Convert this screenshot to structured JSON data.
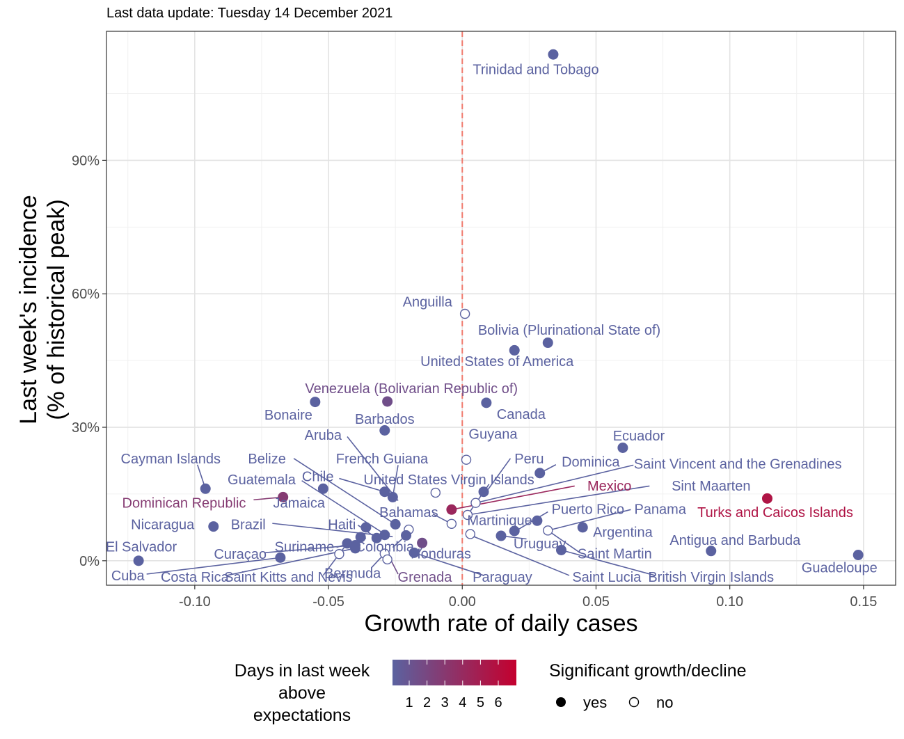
{
  "chart_data": {
    "type": "scatter",
    "subtitle": "Last data update: Tuesday 14 December 2021",
    "xlabel": "Growth rate of daily cases",
    "ylabel_line1": "Last week's incidence",
    "ylabel_line2": "(% of historical peak)",
    "xlim": [
      -0.133,
      0.162
    ],
    "ylim": [
      -5.5,
      119
    ],
    "x_ticks": [
      {
        "value": -0.1,
        "label": "-0.10"
      },
      {
        "value": -0.05,
        "label": "-0.05"
      },
      {
        "value": 0.0,
        "label": "0.00"
      },
      {
        "value": 0.05,
        "label": "0.05"
      },
      {
        "value": 0.1,
        "label": "0.10"
      },
      {
        "value": 0.15,
        "label": "0.15"
      }
    ],
    "y_ticks": [
      {
        "value": 0,
        "label": "0%"
      },
      {
        "value": 30,
        "label": "30%"
      },
      {
        "value": 60,
        "label": "60%"
      },
      {
        "value": 90,
        "label": "90%"
      }
    ],
    "reference_line_x": 0,
    "grid": true,
    "colors": {
      "low": "#5b62a0",
      "high": "#c4002e",
      "reference_line": "#f07a6e"
    },
    "legend_color": {
      "title_lines": [
        "Days in last week",
        "above",
        "expectations"
      ],
      "labels": [
        "1",
        "2",
        "3",
        "4",
        "5",
        "6"
      ],
      "range": [
        1,
        6
      ]
    },
    "legend_shape": {
      "title": "Significant growth/decline",
      "items": [
        {
          "label": "yes",
          "filled": true
        },
        {
          "label": "no",
          "filled": false
        }
      ]
    },
    "points": [
      {
        "country": "Trinidad and Tobago",
        "x": 0.034,
        "y": 113.8,
        "days": 1,
        "significant": true
      },
      {
        "country": "Anguilla",
        "x": 0.001,
        "y": 55.5,
        "days": 1,
        "significant": false
      },
      {
        "country": "Bolivia (Plurinational State of)",
        "x": 0.032,
        "y": 49.0,
        "days": 1,
        "significant": true
      },
      {
        "country": "United States of America",
        "x": 0.0195,
        "y": 47.3,
        "days": 1,
        "significant": true
      },
      {
        "country": "Venezuela (Bolivarian Republic of)",
        "x": -0.028,
        "y": 35.8,
        "days": 2,
        "significant": true
      },
      {
        "country": "Bonaire",
        "x": -0.055,
        "y": 35.7,
        "days": 1,
        "significant": true
      },
      {
        "country": "Canada",
        "x": 0.009,
        "y": 35.5,
        "days": 1,
        "significant": true
      },
      {
        "country": "Barbados",
        "x": -0.029,
        "y": 29.3,
        "days": 1,
        "significant": true
      },
      {
        "country": "Ecuador",
        "x": 0.06,
        "y": 25.4,
        "days": 1,
        "significant": true
      },
      {
        "country": "Guyana",
        "x": 0.0015,
        "y": 22.7,
        "days": 1,
        "significant": false
      },
      {
        "country": "Peru",
        "x": 0.029,
        "y": 19.7,
        "days": 1,
        "significant": true
      },
      {
        "country": "Cayman Islands",
        "x": -0.096,
        "y": 16.2,
        "days": 1,
        "significant": true
      },
      {
        "country": "Guatemala",
        "x": -0.052,
        "y": 16.2,
        "days": 1,
        "significant": true
      },
      {
        "country": "Chile",
        "x": -0.029,
        "y": 15.5,
        "days": 1,
        "significant": true
      },
      {
        "country": "French Guiana",
        "x": -0.026,
        "y": 14.3,
        "days": 1,
        "significant": true
      },
      {
        "country": "United States Virgin Islands",
        "x": 0.008,
        "y": 15.5,
        "days": 1,
        "significant": true
      },
      {
        "country": "Dominica",
        "x": -0.01,
        "y": 15.3,
        "days": 1,
        "significant": false
      },
      {
        "country": "Dominican Republic",
        "x": -0.067,
        "y": 14.3,
        "days": 3,
        "significant": true
      },
      {
        "country": "Turks and Caicos Islands",
        "x": 0.114,
        "y": 14.0,
        "days": 5,
        "significant": true
      },
      {
        "country": "Saint Vincent and the Grenadines",
        "x": 0.005,
        "y": 13.0,
        "days": 1,
        "significant": false
      },
      {
        "country": "Mexico",
        "x": -0.004,
        "y": 11.5,
        "days": 4,
        "significant": true
      },
      {
        "country": "Sint Maarten",
        "x": 0.002,
        "y": 10.3,
        "days": 1,
        "significant": false
      },
      {
        "country": "Puerto Rico",
        "x": 0.028,
        "y": 9.0,
        "days": 1,
        "significant": true
      },
      {
        "country": "Bahamas",
        "x": -0.004,
        "y": 8.3,
        "days": 1,
        "significant": false
      },
      {
        "country": "Belize",
        "x": -0.025,
        "y": 8.2,
        "days": 1,
        "significant": true
      },
      {
        "country": "Nicaragua",
        "x": -0.093,
        "y": 7.7,
        "days": 1,
        "significant": true
      },
      {
        "country": "Argentina",
        "x": 0.045,
        "y": 7.5,
        "days": 1,
        "significant": true
      },
      {
        "country": "Haiti",
        "x": -0.036,
        "y": 7.5,
        "days": 1,
        "significant": true
      },
      {
        "country": "Aruba",
        "x": -0.02,
        "y": 7.0,
        "days": 1,
        "significant": false
      },
      {
        "country": "Panama",
        "x": 0.032,
        "y": 6.8,
        "days": 1,
        "significant": false
      },
      {
        "country": "Martinique",
        "x": 0.0195,
        "y": 6.7,
        "days": 1,
        "significant": true
      },
      {
        "country": "Honduras",
        "x": 0.003,
        "y": 6.0,
        "days": 1,
        "significant": false
      },
      {
        "country": "Jamaica",
        "x": -0.029,
        "y": 5.8,
        "days": 1,
        "significant": true
      },
      {
        "country": "Uruguay",
        "x": 0.0145,
        "y": 5.6,
        "days": 1,
        "significant": true
      },
      {
        "country": "Brazil",
        "x": -0.038,
        "y": 5.3,
        "days": 1,
        "significant": true
      },
      {
        "country": "Colombia",
        "x": -0.021,
        "y": 5.7,
        "days": 1,
        "significant": true
      },
      {
        "country": "Suriname",
        "x": -0.032,
        "y": 5.1,
        "days": 1,
        "significant": true
      },
      {
        "country": "Saint Kitts and Nevis",
        "x": -0.043,
        "y": 3.9,
        "days": 1,
        "significant": true
      },
      {
        "country": "Costa Rica",
        "x": -0.04,
        "y": 2.8,
        "days": 1,
        "significant": true
      },
      {
        "country": "Grenada",
        "x": -0.015,
        "y": 4.0,
        "days": 2,
        "significant": true
      },
      {
        "country": "Saint Lucia",
        "x": 0.037,
        "y": 2.4,
        "days": 1,
        "significant": true
      },
      {
        "country": "Antigua and Barbuda",
        "x": 0.093,
        "y": 2.2,
        "days": 1,
        "significant": true
      },
      {
        "country": "Paraguay",
        "x": -0.018,
        "y": 1.8,
        "days": 1,
        "significant": true
      },
      {
        "country": "Bermuda",
        "x": -0.029,
        "y": 1.6,
        "days": 1,
        "significant": false
      },
      {
        "country": "Curaçao",
        "x": -0.046,
        "y": 1.5,
        "days": 1,
        "significant": false
      },
      {
        "country": "Guadeloupe",
        "x": 0.148,
        "y": 1.3,
        "days": 1,
        "significant": true
      },
      {
        "country": "El Salvador",
        "x": -0.068,
        "y": 0.7,
        "days": 1,
        "significant": true
      },
      {
        "country": "British Virgin Islands",
        "x": -0.028,
        "y": 0.3,
        "days": 1,
        "significant": false
      },
      {
        "country": "Cuba",
        "x": -0.121,
        "y": 0.0,
        "days": 1,
        "significant": true
      },
      {
        "country": "Saint Martin",
        "x": -0.04,
        "y": 3.5,
        "days": 1,
        "significant": true
      }
    ],
    "labels": [
      {
        "text": "Trinidad and Tobago",
        "point": "Trinidad and Tobago",
        "lx": 0.0275,
        "ly": 110.5
      },
      {
        "text": "Anguilla",
        "point": "Anguilla",
        "lx": -0.013,
        "ly": 58.2
      },
      {
        "text": "Bolivia (Plurinational State of)",
        "point": "Bolivia (Plurinational State of)",
        "lx": 0.04,
        "ly": 51.9
      },
      {
        "text": "United States of America",
        "point": "United States of America",
        "lx": 0.013,
        "ly": 44.9
      },
      {
        "text": "Venezuela (Bolivarian Republic of)",
        "point": "Venezuela (Bolivarian Republic of)",
        "lx": -0.019,
        "ly": 38.8
      },
      {
        "text": "Bonaire",
        "point": "Bonaire",
        "lx": -0.065,
        "ly": 32.8
      },
      {
        "text": "Canada",
        "point": "Canada",
        "lx": 0.022,
        "ly": 33.0
      },
      {
        "text": "Barbados",
        "point": "Barbados",
        "lx": -0.029,
        "ly": 31.9
      },
      {
        "text": "Ecuador",
        "point": "Ecuador",
        "lx": 0.066,
        "ly": 28.1
      },
      {
        "text": "Guyana",
        "point": "Guyana",
        "lx": 0.0115,
        "ly": 28.5
      },
      {
        "text": "Aruba",
        "point": "Aruba",
        "lx": -0.052,
        "ly": 28.3,
        "line_to": [
          -0.043,
          27.9,
          -0.024,
          13.5
        ]
      },
      {
        "text": "Cayman Islands",
        "point": "Cayman Islands",
        "lx": -0.109,
        "ly": 23.0,
        "line_to": [
          -0.099,
          21.6,
          -0.096,
          16.2
        ]
      },
      {
        "text": "Belize",
        "point": "Belize",
        "lx": -0.073,
        "ly": 23.0,
        "line_to": [
          -0.063,
          23.0,
          -0.025,
          8.2
        ]
      },
      {
        "text": "French Guiana",
        "point": "French Guiana",
        "lx": -0.03,
        "ly": 23.0,
        "line_to": [
          -0.024,
          21.5,
          -0.026,
          14.3
        ]
      },
      {
        "text": "Peru",
        "point": "Peru",
        "lx": 0.025,
        "ly": 23.0,
        "line_to": [
          0.018,
          23.0,
          0.009,
          15.5
        ]
      },
      {
        "text": "Dominica",
        "point": "Dominica",
        "lx": 0.048,
        "ly": 22.3,
        "line_to": [
          0.035,
          21.6,
          0.029,
          19.7
        ]
      },
      {
        "text": "Saint Vincent and the Grenadines",
        "point": "Saint Vincent and the Grenadines",
        "lx": 0.103,
        "ly": 21.8,
        "line_to": [
          0.064,
          21.5,
          0.005,
          13.0
        ]
      },
      {
        "text": "Guatemala",
        "point": "Guatemala",
        "lx": -0.075,
        "ly": 18.3,
        "line_to": [
          -0.06,
          18.0,
          -0.028,
          5.6
        ]
      },
      {
        "text": "Chile",
        "point": "Chile",
        "lx": -0.054,
        "ly": 19.0,
        "line_to": [
          -0.046,
          18.5,
          -0.029,
          15.5
        ]
      },
      {
        "text": "United States Virgin Islands",
        "point": "United States Virgin Islands",
        "lx": -0.005,
        "ly": 18.3,
        "line_to": [
          0.01,
          17.2,
          0.002,
          10.3
        ]
      },
      {
        "text": "Mexico",
        "point": "Mexico",
        "lx": 0.055,
        "ly": 16.9,
        "line_to": [
          0.042,
          16.8,
          -0.004,
          11.5
        ]
      },
      {
        "text": "Sint Maarten",
        "point": "Sint Maarten",
        "lx": 0.093,
        "ly": 16.9,
        "line_to": [
          0.07,
          16.8,
          0.002,
          10.3
        ]
      },
      {
        "text": "Dominican Republic",
        "point": "Dominican Republic",
        "lx": -0.104,
        "ly": 13.0,
        "line_to": [
          -0.078,
          13.7,
          -0.067,
          14.3
        ]
      },
      {
        "text": "Jamaica",
        "point": "Jamaica",
        "lx": -0.061,
        "ly": 13.0
      },
      {
        "text": "Turks and Caicos Islands",
        "point": "Turks and Caicos Islands",
        "lx": 0.117,
        "ly": 10.9
      },
      {
        "text": "Bahamas",
        "point": "Bahamas",
        "lx": -0.02,
        "ly": 10.9,
        "line_to": [
          -0.011,
          10.5,
          -0.004,
          8.3
        ]
      },
      {
        "text": "Puerto Rico",
        "point": "Puerto Rico",
        "lx": 0.047,
        "ly": 11.6,
        "line_to": [
          0.032,
          11.0,
          0.02,
          6.7
        ]
      },
      {
        "text": "Panama",
        "point": "Panama",
        "lx": 0.074,
        "ly": 11.6,
        "line_to": [
          0.063,
          11.5,
          0.032,
          6.8
        ]
      },
      {
        "text": "Martinique",
        "point": "Martinique",
        "lx": 0.014,
        "ly": 9.1,
        "line_to": [
          0.026,
          8.9,
          0.028,
          9.0
        ]
      },
      {
        "text": "Nicaragua",
        "point": "Nicaragua",
        "lx": -0.112,
        "ly": 8.2
      },
      {
        "text": "Brazil",
        "point": "Brazil",
        "lx": -0.08,
        "ly": 8.2,
        "line_to": [
          -0.071,
          8.4,
          -0.026,
          5.4
        ]
      },
      {
        "text": "Haiti",
        "point": "Haiti",
        "lx": -0.045,
        "ly": 8.2,
        "line_to": [
          -0.039,
          8.0,
          -0.032,
          5.1
        ]
      },
      {
        "text": "Argentina",
        "point": "Argentina",
        "lx": 0.06,
        "ly": 6.5
      },
      {
        "text": "El Salvador",
        "point": "El Salvador",
        "lx": -0.12,
        "ly": 3.2
      },
      {
        "text": "Suriname",
        "point": "Suriname",
        "lx": -0.059,
        "ly": 3.2,
        "line_to": [
          -0.047,
          3.0,
          -0.036,
          5.1
        ]
      },
      {
        "text": "Colombia",
        "point": "Colombia",
        "lx": -0.029,
        "ly": 3.2,
        "line_to": [
          -0.026,
          3.0,
          -0.021,
          5.7
        ]
      },
      {
        "text": "Uruguay",
        "point": "Uruguay",
        "lx": 0.029,
        "ly": 3.9,
        "line_to": [
          0.024,
          4.9,
          0.0145,
          5.6
        ]
      },
      {
        "text": "Antigua and Barbuda",
        "point": "Antigua and Barbuda",
        "lx": 0.102,
        "ly": 4.7
      },
      {
        "text": "Honduras",
        "point": "Honduras",
        "lx": -0.008,
        "ly": 1.6,
        "line_to": [
          -0.016,
          2.0,
          -0.014,
          4.0
        ]
      },
      {
        "text": "Saint Martin",
        "point": "Saint Martin",
        "lx": 0.057,
        "ly": 1.6,
        "line_to": [
          0.044,
          1.8,
          0.032,
          6.8
        ]
      },
      {
        "text": "Curaçao",
        "point": "Curaçao",
        "lx": -0.083,
        "ly": 1.5,
        "line_to": [
          -0.074,
          1.8,
          -0.04,
          3.5
        ]
      },
      {
        "text": "Guadeloupe",
        "point": "Guadeloupe",
        "lx": 0.141,
        "ly": -1.5
      },
      {
        "text": "Bermuda",
        "point": "Bermuda",
        "lx": -0.041,
        "ly": -2.8,
        "line_to": [
          -0.034,
          -1.6,
          -0.029,
          1.6
        ]
      },
      {
        "text": "Cuba",
        "point": "Cuba",
        "lx": -0.125,
        "ly": -3.3,
        "line_to": [
          -0.118,
          -3.0,
          -0.068,
          0.7
        ]
      },
      {
        "text": "Costa Rica",
        "point": "Costa Rica",
        "lx": -0.1,
        "ly": -3.6,
        "line_to": [
          -0.088,
          -3.3,
          -0.04,
          2.8
        ]
      },
      {
        "text": "Saint Kitts and Nevis",
        "point": "Saint Kitts and Nevis",
        "lx": -0.065,
        "ly": -3.6,
        "line_to": [
          -0.052,
          -3.3,
          -0.043,
          3.9
        ]
      },
      {
        "text": "Grenada",
        "point": "Grenada",
        "lx": -0.014,
        "ly": -3.6,
        "line_to": [
          -0.024,
          -3.0,
          -0.027,
          0.5
        ]
      },
      {
        "text": "Paraguay",
        "point": "Paraguay",
        "lx": 0.015,
        "ly": -3.6,
        "line_to": [
          0.008,
          -3.3,
          -0.018,
          1.8
        ]
      },
      {
        "text": "Saint Lucia",
        "point": "Saint Lucia",
        "lx": 0.054,
        "ly": -3.6,
        "line_to": [
          0.04,
          -3.3,
          0.002,
          6.0
        ]
      },
      {
        "text": "British Virgin Islands",
        "point": "British Virgin Islands",
        "lx": 0.093,
        "ly": -3.6,
        "line_to": [
          0.072,
          -3.3,
          0.037,
          2.4
        ]
      }
    ]
  }
}
